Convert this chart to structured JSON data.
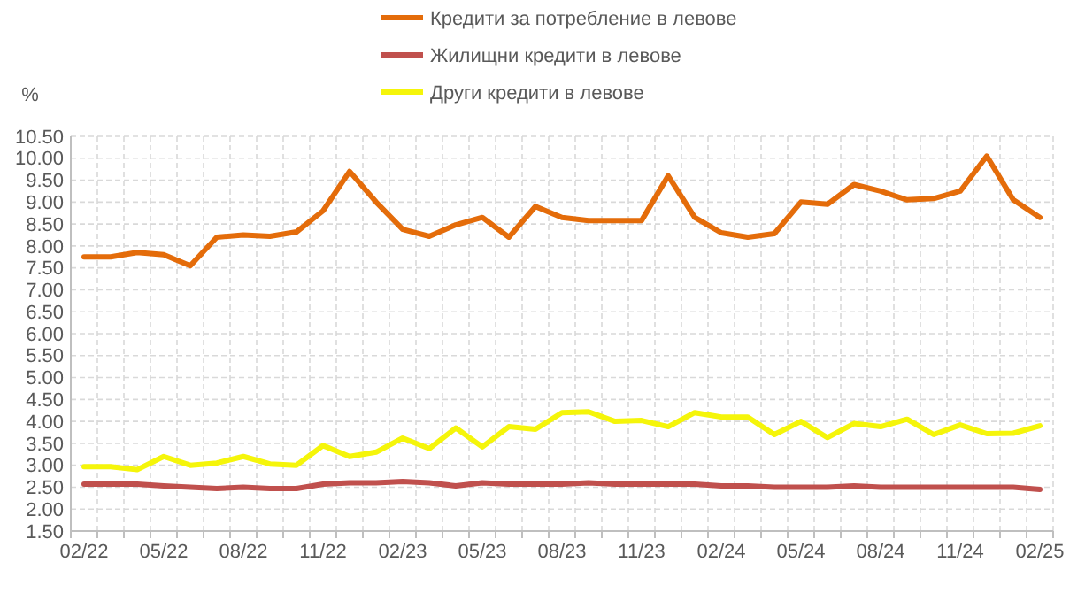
{
  "chart_data": {
    "type": "line",
    "ylabel": "%",
    "categories": [
      "02/22",
      null,
      null,
      "05/22",
      null,
      null,
      "08/22",
      null,
      null,
      "11/22",
      null,
      null,
      "02/23",
      null,
      null,
      "05/23",
      null,
      null,
      "08/23",
      null,
      null,
      "11/23",
      null,
      null,
      "02/24",
      null,
      null,
      "05/24",
      null,
      null,
      "08/24",
      null,
      null,
      "11/24",
      null,
      null,
      "02/25"
    ],
    "series": [
      {
        "name": "Кредити за потребление в левове",
        "color": "#e46c0a",
        "values": [
          7.75,
          7.75,
          7.85,
          7.8,
          7.55,
          8.2,
          8.25,
          8.22,
          8.32,
          8.8,
          9.7,
          9.0,
          8.38,
          8.22,
          8.48,
          8.65,
          8.2,
          8.9,
          8.65,
          8.58,
          8.58,
          8.58,
          9.6,
          8.65,
          8.3,
          8.2,
          8.28,
          9.0,
          8.95,
          9.4,
          9.25,
          9.05,
          9.08,
          9.25,
          10.05,
          9.05,
          8.65
        ]
      },
      {
        "name": "Жилищни кредити в левове",
        "color": "#c0504d",
        "values": [
          2.57,
          2.57,
          2.57,
          2.53,
          2.5,
          2.47,
          2.5,
          2.47,
          2.47,
          2.57,
          2.6,
          2.6,
          2.63,
          2.6,
          2.53,
          2.6,
          2.57,
          2.57,
          2.57,
          2.6,
          2.57,
          2.57,
          2.57,
          2.57,
          2.53,
          2.53,
          2.5,
          2.5,
          2.5,
          2.53,
          2.5,
          2.5,
          2.5,
          2.5,
          2.5,
          2.5,
          2.45
        ]
      },
      {
        "name": "Други кредити в левове",
        "color": "#f5f50a",
        "values": [
          2.97,
          2.97,
          2.9,
          3.2,
          3.0,
          3.05,
          3.2,
          3.03,
          3.0,
          3.45,
          3.2,
          3.3,
          3.62,
          3.38,
          3.85,
          3.42,
          3.88,
          3.82,
          4.2,
          4.22,
          4.0,
          4.02,
          3.88,
          4.2,
          4.1,
          4.1,
          3.7,
          4.0,
          3.63,
          3.95,
          3.88,
          4.05,
          3.7,
          3.92,
          3.72,
          3.73,
          3.9
        ]
      }
    ],
    "ylim": [
      1.5,
      10.5
    ],
    "yticks": [
      {
        "value": 1.5,
        "label": "1.50"
      },
      {
        "value": 2,
        "label": "2.00"
      },
      {
        "value": 2.5,
        "label": "2.50"
      },
      {
        "value": 3,
        "label": "3.00"
      },
      {
        "value": 3.5,
        "label": "3.50"
      },
      {
        "value": 4,
        "label": "4.00"
      },
      {
        "value": 4.5,
        "label": "4.50"
      },
      {
        "value": 5,
        "label": "5.00"
      },
      {
        "value": 5.5,
        "label": "5.50"
      },
      {
        "value": 6,
        "label": "6.00"
      },
      {
        "value": 6.5,
        "label": "6.50"
      },
      {
        "value": 7,
        "label": "7.00"
      },
      {
        "value": 7.5,
        "label": "7.50"
      },
      {
        "value": 8,
        "label": "8.00"
      },
      {
        "value": 8.5,
        "label": "8.50"
      },
      {
        "value": 9,
        "label": "9.00"
      },
      {
        "value": 9.5,
        "label": "9.50"
      },
      {
        "value": 10,
        "label": "10.00"
      },
      {
        "value": 10.5,
        "label": "10.50"
      }
    ],
    "grid": true,
    "legend": "top",
    "marker": "none",
    "line_style": "solid"
  }
}
